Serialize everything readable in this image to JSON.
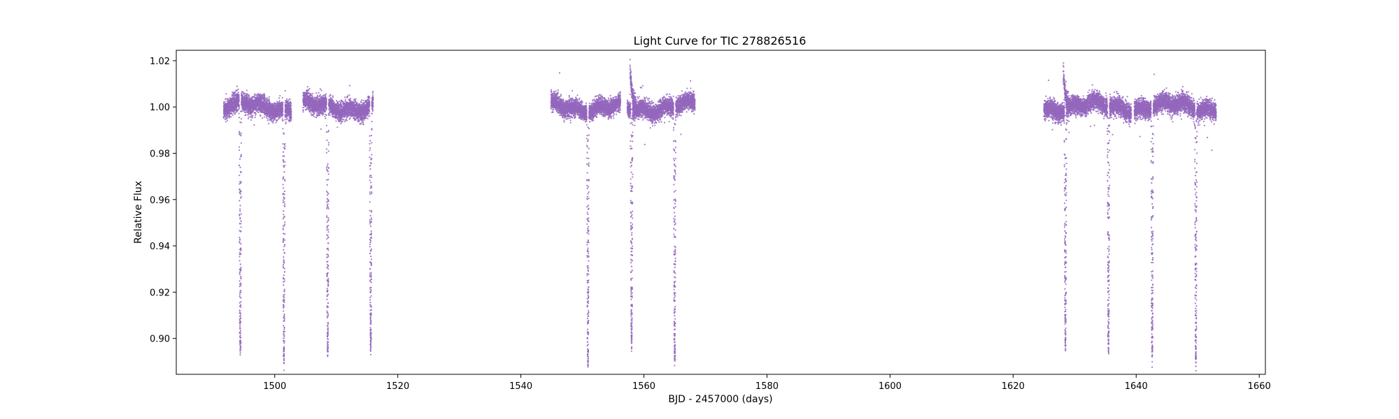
{
  "chart_data": {
    "type": "scatter",
    "title": "Light Curve for TIC 278826516",
    "xlabel": "BJD - 2457000 (days)",
    "ylabel": "Relative Flux",
    "xlim": [
      1484,
      1661
    ],
    "ylim": [
      0.8845,
      1.0245
    ],
    "xticks": [
      1500,
      1520,
      1540,
      1560,
      1580,
      1600,
      1620,
      1640,
      1660
    ],
    "yticks": [
      0.9,
      0.92,
      0.94,
      0.96,
      0.98,
      1.0,
      1.02
    ],
    "grid": false,
    "legend": "none",
    "color": "#9467bd",
    "segments": [
      {
        "start": 1491.7,
        "end": 1502.7,
        "baseline": 1.0,
        "scatter": 0.0035
      },
      {
        "start": 1504.6,
        "end": 1516.0,
        "baseline": 1.0,
        "scatter": 0.0035
      },
      {
        "start": 1544.9,
        "end": 1556.2,
        "baseline": 1.0,
        "scatter": 0.0033
      },
      {
        "start": 1557.3,
        "end": 1568.3,
        "baseline": 1.0,
        "scatter": 0.0033
      },
      {
        "start": 1625.0,
        "end": 1639.2,
        "baseline": 1.0,
        "scatter": 0.0035
      },
      {
        "start": 1639.7,
        "end": 1653.0,
        "baseline": 1.0,
        "scatter": 0.0035
      }
    ],
    "transits": [
      {
        "time": 1494.4,
        "min_flux": 0.893
      },
      {
        "time": 1501.5,
        "min_flux": 0.892
      },
      {
        "time": 1508.6,
        "min_flux": 0.894
      },
      {
        "time": 1515.6,
        "min_flux": 0.896
      },
      {
        "time": 1550.9,
        "min_flux": 0.892
      },
      {
        "time": 1558.0,
        "min_flux": 0.899
      },
      {
        "time": 1565.0,
        "min_flux": 0.891
      },
      {
        "time": 1628.5,
        "min_flux": 0.898
      },
      {
        "time": 1635.5,
        "min_flux": 0.897
      },
      {
        "time": 1642.6,
        "min_flux": 0.894
      },
      {
        "time": 1649.7,
        "min_flux": 0.891
      }
    ],
    "features": [
      {
        "time": 1557.9,
        "flux": 1.017,
        "description": "flare"
      },
      {
        "time": 1628.3,
        "flux": 1.015,
        "description": "flare"
      }
    ]
  }
}
